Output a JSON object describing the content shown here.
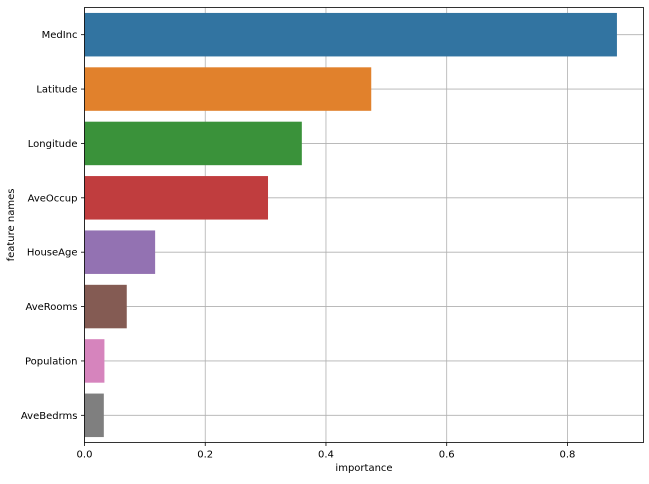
{
  "chart_data": {
    "type": "bar",
    "orientation": "horizontal",
    "title": "",
    "xlabel": "importance",
    "ylabel": "feature names",
    "categories": [
      "MedInc",
      "Latitude",
      "Longitude",
      "AveOccup",
      "HouseAge",
      "AveRooms",
      "Population",
      "AveBedrms"
    ],
    "values": [
      0.882,
      0.475,
      0.36,
      0.304,
      0.117,
      0.07,
      0.033,
      0.032
    ],
    "colors": [
      "#3274a1",
      "#e1812c",
      "#3a923a",
      "#c03d3e",
      "#9372b2",
      "#845b53",
      "#d684bd",
      "#7f7f7f"
    ],
    "xlim": [
      0,
      0.926
    ],
    "xticks": [
      0,
      0.2,
      0.4,
      0.6,
      0.8
    ],
    "xtick_labels": [
      "0.0",
      "0.2",
      "0.4",
      "0.6",
      "0.8"
    ],
    "grid": true
  }
}
